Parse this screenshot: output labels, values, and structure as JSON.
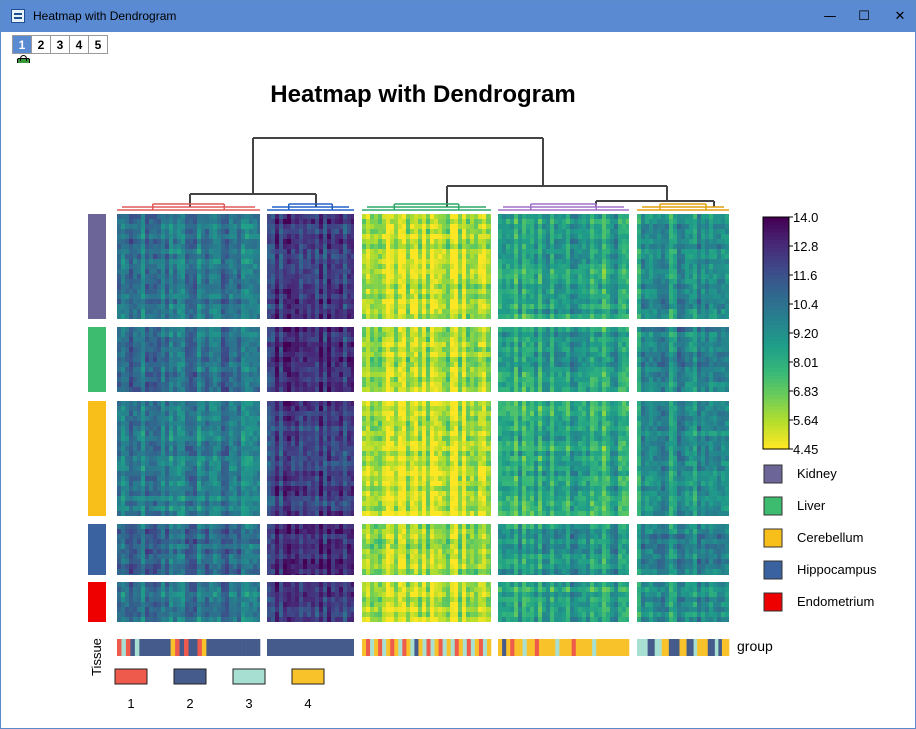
{
  "window": {
    "title": "Heatmap with Dendrogram",
    "controls": {
      "minimize": "—",
      "maximize": "☐",
      "close": "✕"
    }
  },
  "pages": [
    "1",
    "2",
    "3",
    "4",
    "5"
  ],
  "active_page": "1",
  "chart_data": {
    "type": "heatmap",
    "title": "Heatmap with Dendrogram",
    "colorscale": "viridis (reversed: high = dark purple, low = yellow)",
    "colorbar": {
      "ticks": [
        "14.0",
        "12.8",
        "11.6",
        "10.4",
        "9.20",
        "8.01",
        "6.83",
        "5.64",
        "4.45"
      ],
      "min": 4.45,
      "max": 14.0
    },
    "row_legend": [
      {
        "label": "Kidney",
        "color": "#6b6598"
      },
      {
        "label": "Liver",
        "color": "#3dbb6f"
      },
      {
        "label": "Cerebellum",
        "color": "#f8be1a"
      },
      {
        "label": "Hippocampus",
        "color": "#3a62a0"
      },
      {
        "label": "Endometrium",
        "color": "#ee0000"
      }
    ],
    "row_groups": [
      "Kidney",
      "Liver",
      "Cerebellum",
      "Hippocampus",
      "Endometrium"
    ],
    "column_clusters": [
      {
        "id": 1,
        "dendro_color": "#e05a5a",
        "mean_level": 10.0
      },
      {
        "id": 2,
        "dendro_color": "#2060c8",
        "mean_level": 12.6
      },
      {
        "id": 3,
        "dendro_color": "#2ca868",
        "mean_level": 5.6
      },
      {
        "id": 4,
        "dendro_color": "#a070c8",
        "mean_level": 8.4
      },
      {
        "id": 5,
        "dendro_color": "#e0a010",
        "mean_level": 9.2
      }
    ],
    "column_annotation": {
      "label": "group",
      "axis_label": "Tissue",
      "legend": [
        {
          "label": "1",
          "color": "#ee5a4c"
        },
        {
          "label": "2",
          "color": "#455b8c"
        },
        {
          "label": "3",
          "color": "#a8dfd3"
        },
        {
          "label": "4",
          "color": "#f8c22a"
        }
      ]
    }
  }
}
